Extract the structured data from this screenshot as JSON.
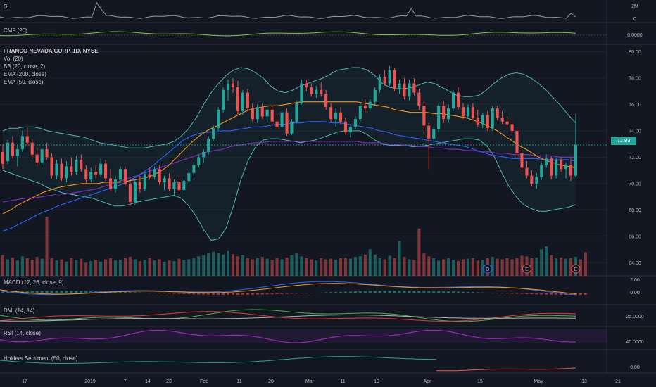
{
  "chart_data": {
    "type": "candlestick",
    "symbol_title": "FRANCO NEVADA CORP, 1D, NYSE",
    "last_price": "72.93",
    "price_axis": {
      "ticks": [
        "80.00",
        "78.00",
        "76.00",
        "74.00",
        "72.00",
        "70.00",
        "68.00",
        "66.00",
        "64.00"
      ],
      "ylim": [
        63,
        80.4
      ]
    },
    "x_axis": {
      "ticks": [
        "17",
        "2019",
        "7",
        "14",
        "23",
        "Feb",
        "11",
        "20",
        "Mar",
        "11",
        "19",
        "Apr",
        "15",
        "May",
        "13",
        "21"
      ]
    },
    "overlays": [
      "Vol (20)",
      "BB (20, close, 2)",
      "EMA (200, close)",
      "EMA (50, close)"
    ],
    "candles": [
      {
        "o": 72.4,
        "h": 73.0,
        "l": 71.1,
        "c": 71.5
      },
      {
        "o": 71.7,
        "h": 73.3,
        "l": 71.5,
        "c": 73.1
      },
      {
        "o": 73.1,
        "h": 73.6,
        "l": 71.9,
        "c": 72.1
      },
      {
        "o": 72.1,
        "h": 72.9,
        "l": 71.3,
        "c": 72.6
      },
      {
        "o": 72.6,
        "h": 74.0,
        "l": 72.4,
        "c": 73.6
      },
      {
        "o": 73.6,
        "h": 74.3,
        "l": 72.8,
        "c": 73.1
      },
      {
        "o": 73.1,
        "h": 73.4,
        "l": 71.9,
        "c": 72.2
      },
      {
        "o": 72.2,
        "h": 72.7,
        "l": 71.3,
        "c": 71.6
      },
      {
        "o": 71.6,
        "h": 72.9,
        "l": 71.4,
        "c": 72.6
      },
      {
        "o": 72.6,
        "h": 73.1,
        "l": 71.8,
        "c": 72.0
      },
      {
        "o": 72.0,
        "h": 72.3,
        "l": 70.4,
        "c": 70.6
      },
      {
        "o": 70.6,
        "h": 71.8,
        "l": 70.3,
        "c": 71.5
      },
      {
        "o": 71.5,
        "h": 71.9,
        "l": 70.2,
        "c": 70.4
      },
      {
        "o": 70.4,
        "h": 71.7,
        "l": 70.1,
        "c": 71.3
      },
      {
        "o": 71.3,
        "h": 72.0,
        "l": 70.6,
        "c": 70.9
      },
      {
        "o": 70.9,
        "h": 72.1,
        "l": 70.7,
        "c": 71.8
      },
      {
        "o": 71.8,
        "h": 72.2,
        "l": 70.9,
        "c": 71.1
      },
      {
        "o": 71.1,
        "h": 71.4,
        "l": 70.0,
        "c": 70.3
      },
      {
        "o": 70.3,
        "h": 71.2,
        "l": 70.1,
        "c": 70.9
      },
      {
        "o": 70.9,
        "h": 71.4,
        "l": 70.4,
        "c": 70.7
      },
      {
        "o": 70.7,
        "h": 71.9,
        "l": 70.5,
        "c": 71.5
      },
      {
        "o": 71.5,
        "h": 71.8,
        "l": 70.2,
        "c": 70.4
      },
      {
        "o": 70.4,
        "h": 71.1,
        "l": 69.4,
        "c": 69.6
      },
      {
        "o": 69.6,
        "h": 70.6,
        "l": 69.3,
        "c": 70.3
      },
      {
        "o": 70.3,
        "h": 71.3,
        "l": 70.1,
        "c": 71.1
      },
      {
        "o": 71.1,
        "h": 71.3,
        "l": 69.8,
        "c": 70.0
      },
      {
        "o": 70.0,
        "h": 70.4,
        "l": 68.3,
        "c": 68.6
      },
      {
        "o": 68.6,
        "h": 70.3,
        "l": 68.4,
        "c": 70.1
      },
      {
        "o": 70.1,
        "h": 70.6,
        "l": 69.3,
        "c": 69.6
      },
      {
        "o": 69.6,
        "h": 70.9,
        "l": 69.4,
        "c": 70.7
      },
      {
        "o": 70.7,
        "h": 71.2,
        "l": 70.3,
        "c": 70.5
      },
      {
        "o": 70.5,
        "h": 71.3,
        "l": 70.3,
        "c": 71.1
      },
      {
        "o": 71.1,
        "h": 71.4,
        "l": 69.9,
        "c": 70.1
      },
      {
        "o": 70.1,
        "h": 70.6,
        "l": 69.5,
        "c": 70.4
      },
      {
        "o": 70.4,
        "h": 70.8,
        "l": 69.4,
        "c": 69.6
      },
      {
        "o": 69.6,
        "h": 70.3,
        "l": 69.1,
        "c": 70.1
      },
      {
        "o": 70.1,
        "h": 70.6,
        "l": 69.3,
        "c": 69.5
      },
      {
        "o": 69.5,
        "h": 70.4,
        "l": 69.2,
        "c": 70.2
      },
      {
        "o": 70.2,
        "h": 71.0,
        "l": 70.0,
        "c": 70.8
      },
      {
        "o": 70.8,
        "h": 71.6,
        "l": 70.6,
        "c": 71.4
      },
      {
        "o": 71.4,
        "h": 72.2,
        "l": 71.2,
        "c": 72.0
      },
      {
        "o": 72.0,
        "h": 72.6,
        "l": 71.6,
        "c": 72.4
      },
      {
        "o": 72.4,
        "h": 73.6,
        "l": 72.2,
        "c": 73.4
      },
      {
        "o": 73.4,
        "h": 74.4,
        "l": 73.2,
        "c": 74.2
      },
      {
        "o": 74.2,
        "h": 75.8,
        "l": 74.0,
        "c": 75.6
      },
      {
        "o": 75.6,
        "h": 77.3,
        "l": 75.4,
        "c": 77.1
      },
      {
        "o": 77.1,
        "h": 77.9,
        "l": 76.3,
        "c": 77.6
      },
      {
        "o": 77.6,
        "h": 78.0,
        "l": 76.9,
        "c": 77.3
      },
      {
        "o": 77.3,
        "h": 77.8,
        "l": 75.2,
        "c": 75.5
      },
      {
        "o": 75.5,
        "h": 77.1,
        "l": 75.2,
        "c": 76.9
      },
      {
        "o": 76.9,
        "h": 77.2,
        "l": 75.5,
        "c": 75.7
      },
      {
        "o": 75.7,
        "h": 76.1,
        "l": 74.7,
        "c": 74.9
      },
      {
        "o": 74.9,
        "h": 76.0,
        "l": 74.6,
        "c": 75.8
      },
      {
        "o": 75.8,
        "h": 76.1,
        "l": 74.9,
        "c": 75.1
      },
      {
        "o": 75.1,
        "h": 75.9,
        "l": 74.6,
        "c": 75.6
      },
      {
        "o": 75.6,
        "h": 75.9,
        "l": 74.4,
        "c": 74.7
      },
      {
        "o": 74.7,
        "h": 75.3,
        "l": 74.1,
        "c": 74.3
      },
      {
        "o": 74.3,
        "h": 75.6,
        "l": 74.2,
        "c": 75.4
      },
      {
        "o": 75.4,
        "h": 75.7,
        "l": 73.6,
        "c": 73.8
      },
      {
        "o": 73.8,
        "h": 74.9,
        "l": 73.7,
        "c": 74.7
      },
      {
        "o": 74.7,
        "h": 76.3,
        "l": 74.6,
        "c": 76.1
      },
      {
        "o": 76.1,
        "h": 77.9,
        "l": 76.0,
        "c": 77.6
      },
      {
        "o": 77.6,
        "h": 77.9,
        "l": 77.0,
        "c": 77.3
      },
      {
        "o": 77.3,
        "h": 77.6,
        "l": 76.6,
        "c": 76.8
      },
      {
        "o": 76.8,
        "h": 77.4,
        "l": 76.5,
        "c": 77.1
      },
      {
        "o": 77.1,
        "h": 77.7,
        "l": 76.6,
        "c": 76.8
      },
      {
        "o": 76.8,
        "h": 77.1,
        "l": 75.6,
        "c": 75.8
      },
      {
        "o": 75.8,
        "h": 76.1,
        "l": 74.7,
        "c": 74.9
      },
      {
        "o": 74.9,
        "h": 75.7,
        "l": 74.3,
        "c": 75.4
      },
      {
        "o": 75.4,
        "h": 75.8,
        "l": 74.5,
        "c": 74.7
      },
      {
        "o": 74.7,
        "h": 75.0,
        "l": 73.7,
        "c": 73.9
      },
      {
        "o": 73.9,
        "h": 74.5,
        "l": 73.5,
        "c": 74.3
      },
      {
        "o": 74.3,
        "h": 75.1,
        "l": 74.1,
        "c": 74.9
      },
      {
        "o": 74.9,
        "h": 76.1,
        "l": 74.7,
        "c": 75.9
      },
      {
        "o": 75.9,
        "h": 76.4,
        "l": 75.4,
        "c": 75.7
      },
      {
        "o": 75.7,
        "h": 76.4,
        "l": 75.5,
        "c": 76.2
      },
      {
        "o": 76.2,
        "h": 77.3,
        "l": 76.0,
        "c": 77.1
      },
      {
        "o": 77.1,
        "h": 78.3,
        "l": 76.9,
        "c": 78.1
      },
      {
        "o": 78.1,
        "h": 78.6,
        "l": 77.4,
        "c": 77.6
      },
      {
        "o": 77.6,
        "h": 78.9,
        "l": 77.4,
        "c": 78.6
      },
      {
        "o": 78.6,
        "h": 78.8,
        "l": 77.0,
        "c": 77.2
      },
      {
        "o": 77.2,
        "h": 77.9,
        "l": 76.8,
        "c": 77.6
      },
      {
        "o": 77.6,
        "h": 78.0,
        "l": 76.4,
        "c": 76.6
      },
      {
        "o": 76.6,
        "h": 77.9,
        "l": 76.3,
        "c": 77.6
      },
      {
        "o": 77.6,
        "h": 78.0,
        "l": 76.7,
        "c": 76.9
      },
      {
        "o": 76.9,
        "h": 77.2,
        "l": 75.6,
        "c": 75.9
      },
      {
        "o": 75.9,
        "h": 76.2,
        "l": 73.8,
        "c": 74.4
      },
      {
        "o": 74.4,
        "h": 74.6,
        "l": 71.1,
        "c": 73.4
      },
      {
        "o": 73.4,
        "h": 74.3,
        "l": 73.1,
        "c": 74.1
      },
      {
        "o": 74.1,
        "h": 76.1,
        "l": 73.9,
        "c": 75.9
      },
      {
        "o": 75.9,
        "h": 76.3,
        "l": 74.6,
        "c": 74.9
      },
      {
        "o": 74.9,
        "h": 76.0,
        "l": 74.6,
        "c": 75.7
      },
      {
        "o": 75.7,
        "h": 77.1,
        "l": 75.5,
        "c": 76.9
      },
      {
        "o": 76.9,
        "h": 77.3,
        "l": 75.6,
        "c": 75.8
      },
      {
        "o": 75.8,
        "h": 76.1,
        "l": 74.9,
        "c": 75.1
      },
      {
        "o": 75.1,
        "h": 76.0,
        "l": 74.9,
        "c": 75.8
      },
      {
        "o": 75.8,
        "h": 76.1,
        "l": 74.8,
        "c": 75.0
      },
      {
        "o": 75.0,
        "h": 75.6,
        "l": 74.3,
        "c": 74.5
      },
      {
        "o": 74.5,
        "h": 75.4,
        "l": 74.2,
        "c": 75.2
      },
      {
        "o": 75.2,
        "h": 75.5,
        "l": 74.0,
        "c": 74.2
      },
      {
        "o": 74.2,
        "h": 75.9,
        "l": 74.0,
        "c": 75.7
      },
      {
        "o": 75.7,
        "h": 75.9,
        "l": 74.8,
        "c": 75.0
      },
      {
        "o": 75.0,
        "h": 75.5,
        "l": 74.5,
        "c": 74.7
      },
      {
        "o": 74.7,
        "h": 75.1,
        "l": 74.2,
        "c": 74.5
      },
      {
        "o": 74.5,
        "h": 74.9,
        "l": 73.8,
        "c": 74.0
      },
      {
        "o": 74.0,
        "h": 74.3,
        "l": 72.1,
        "c": 72.3
      },
      {
        "o": 72.3,
        "h": 72.6,
        "l": 70.9,
        "c": 71.2
      },
      {
        "o": 71.2,
        "h": 71.7,
        "l": 70.4,
        "c": 70.6
      },
      {
        "o": 70.6,
        "h": 71.0,
        "l": 69.8,
        "c": 70.0
      },
      {
        "o": 70.0,
        "h": 70.8,
        "l": 69.6,
        "c": 70.5
      },
      {
        "o": 70.5,
        "h": 71.6,
        "l": 70.3,
        "c": 71.4
      },
      {
        "o": 71.4,
        "h": 72.2,
        "l": 71.2,
        "c": 71.9
      },
      {
        "o": 71.9,
        "h": 72.1,
        "l": 70.3,
        "c": 70.6
      },
      {
        "o": 70.6,
        "h": 72.0,
        "l": 70.4,
        "c": 71.8
      },
      {
        "o": 71.8,
        "h": 72.0,
        "l": 70.9,
        "c": 71.1
      },
      {
        "o": 71.1,
        "h": 71.6,
        "l": 70.4,
        "c": 71.4
      },
      {
        "o": 71.4,
        "h": 71.9,
        "l": 70.2,
        "c": 70.6
      },
      {
        "o": 70.6,
        "h": 75.3,
        "l": 70.5,
        "c": 72.93
      }
    ],
    "bb_upper": [
      74.0,
      74.2,
      74.2,
      74.3,
      74.3,
      74.2,
      74.0,
      73.9,
      73.8,
      73.7,
      73.6,
      73.5,
      73.3,
      73.1,
      73.0,
      72.9,
      72.8,
      72.7,
      72.7,
      72.7,
      72.8,
      72.9,
      73.0,
      73.2,
      73.6,
      74.2,
      75.0,
      76.0,
      76.9,
      77.6,
      78.2,
      78.6,
      78.8,
      78.7,
      78.4,
      78.0,
      77.4,
      77.0,
      76.9,
      77.1,
      77.4,
      77.6,
      77.8,
      78.0,
      78.3,
      78.6,
      78.7,
      78.8,
      78.8,
      78.6,
      78.2,
      77.6,
      77.3,
      77.2,
      77.2,
      77.3,
      77.5,
      77.7,
      77.6,
      77.3,
      77.0,
      76.7,
      76.6,
      76.6,
      76.7,
      77.1,
      77.6,
      78.0,
      78.3,
      78.4,
      78.3,
      78.0,
      77.6,
      77.1,
      76.5,
      75.9,
      75.2,
      74.6
    ],
    "bb_lower": [
      71.0,
      70.8,
      70.6,
      70.4,
      70.2,
      70.0,
      69.7,
      69.5,
      69.3,
      69.2,
      69.1,
      69.0,
      68.9,
      68.7,
      68.5,
      68.3,
      68.3,
      68.4,
      68.6,
      68.7,
      68.8,
      68.9,
      69.0,
      69.1,
      68.9,
      68.3,
      67.5,
      66.5,
      65.7,
      65.8,
      66.6,
      68.3,
      70.3,
      71.8,
      72.8,
      73.3,
      73.4,
      73.4,
      73.3,
      73.2,
      73.1,
      73.2,
      73.3,
      73.5,
      73.7,
      73.9,
      74.0,
      74.0,
      74.0,
      73.7,
      73.3,
      73.0,
      72.9,
      72.9,
      72.9,
      72.8,
      72.8,
      72.9,
      73.0,
      73.1,
      73.2,
      73.3,
      73.4,
      73.4,
      73.3,
      72.9,
      72.1,
      70.9,
      69.8,
      69.0,
      68.4,
      68.1,
      67.9,
      67.9,
      68.0,
      68.1,
      68.2,
      68.4
    ],
    "ema50": [
      67.7,
      68.0,
      68.4,
      68.7,
      69.0,
      69.3,
      69.5,
      69.7,
      69.8,
      69.9,
      70.0,
      70.0,
      70.0,
      70.1,
      70.1,
      70.1,
      70.2,
      70.3,
      70.4,
      70.6,
      70.9,
      71.3,
      71.9,
      72.5,
      73.1,
      73.6,
      74.0,
      74.3,
      74.6,
      74.9,
      75.2,
      75.5,
      75.7,
      75.8,
      75.9,
      75.9,
      76.0,
      76.1,
      76.2,
      76.2,
      76.2,
      76.2,
      76.2,
      76.2,
      76.2,
      76.2,
      76.1,
      76.0,
      75.9,
      75.8,
      75.6,
      75.5,
      75.4,
      75.4,
      75.4,
      75.3,
      75.3,
      75.2,
      75.1,
      75.0,
      74.8,
      74.6,
      74.3,
      74.0,
      73.6,
      73.2,
      72.8,
      72.5,
      72.1,
      71.8,
      71.6,
      71.4,
      71.3,
      71.2
    ],
    "ema200": [
      66.4,
      66.6,
      66.9,
      67.2,
      67.5,
      67.8,
      68.0,
      68.3,
      68.5,
      68.7,
      68.9,
      69.1,
      69.3,
      69.5,
      69.7,
      69.9,
      70.2,
      70.5,
      70.9,
      71.3,
      71.8,
      72.3,
      72.8,
      73.3,
      73.6,
      73.8,
      73.9,
      73.9,
      74.0,
      74.0,
      74.1,
      74.2,
      74.3,
      74.3,
      74.4,
      74.5,
      74.5,
      74.6,
      74.6,
      74.7,
      74.7,
      74.7,
      74.6,
      74.6,
      74.5,
      74.4,
      74.3,
      74.2,
      74.0,
      73.9,
      73.7,
      73.6,
      73.5,
      73.4,
      73.3,
      73.2,
      73.1,
      73.0,
      72.9,
      72.8,
      72.6,
      72.4,
      72.2,
      72.1,
      72.0,
      71.9,
      71.9,
      71.9,
      71.9,
      71.8,
      71.8,
      71.8,
      71.8,
      71.7
    ],
    "ema_purple": [
      68.6,
      68.7,
      68.8,
      68.9,
      68.9,
      69.0,
      69.1,
      69.2,
      69.2,
      69.3,
      69.4,
      69.5,
      69.6,
      69.8,
      70.0,
      70.2,
      70.4,
      70.6,
      70.8,
      71.0,
      71.2,
      71.4,
      71.6,
      71.8,
      72.0,
      72.2,
      72.4,
      72.5,
      72.6,
      72.8,
      72.9,
      73.0,
      73.1,
      73.1,
      73.2,
      73.2,
      73.2,
      73.2,
      73.2,
      73.2,
      73.2,
      73.2,
      73.2,
      73.2,
      73.2,
      73.2,
      73.1,
      73.1,
      73.1,
      73.0,
      73.0,
      72.9,
      72.9,
      72.8,
      72.8,
      72.7,
      72.7,
      72.6,
      72.6,
      72.5,
      72.5,
      72.4,
      72.4,
      72.3,
      72.3,
      72.2,
      72.2,
      72.2,
      72.1,
      72.1,
      72.1,
      72.0,
      72.0,
      72.0
    ],
    "volume": [
      0.35,
      0.28,
      0.31,
      0.26,
      0.33,
      0.3,
      0.27,
      0.32,
      0.29,
      1.0,
      0.3,
      0.26,
      0.28,
      0.24,
      0.3,
      0.27,
      0.29,
      0.22,
      0.25,
      0.27,
      0.24,
      0.28,
      0.3,
      0.26,
      0.27,
      0.3,
      0.32,
      0.28,
      0.25,
      0.27,
      0.3,
      0.26,
      0.28,
      0.24,
      0.26,
      0.25,
      0.29,
      0.27,
      0.28,
      0.3,
      0.33,
      0.35,
      0.38,
      0.41,
      0.39,
      0.36,
      0.42,
      0.37,
      0.33,
      0.35,
      0.3,
      0.28,
      0.3,
      0.32,
      0.29,
      0.27,
      0.3,
      0.28,
      0.31,
      0.35,
      0.38,
      0.33,
      0.3,
      0.28,
      0.26,
      0.3,
      0.28,
      0.29,
      0.27,
      0.3,
      0.31,
      0.29,
      0.32,
      0.33,
      0.36,
      0.45,
      0.36,
      0.3,
      0.28,
      0.34,
      0.3,
      0.59,
      0.32,
      0.28,
      0.27,
      0.8,
      0.38,
      0.33,
      0.3,
      0.26,
      0.28,
      0.3,
      0.27,
      0.25,
      0.28,
      0.29,
      0.3,
      0.26,
      0.27,
      0.3,
      0.32,
      0.29,
      0.28,
      0.3,
      0.28,
      0.3,
      0.34,
      0.33,
      0.3,
      0.31,
      0.45,
      0.5,
      0.35,
      0.3,
      0.31,
      0.29,
      0.3,
      0.32,
      0.28,
      0.4
    ],
    "volume_markers": [
      "D",
      "E",
      "E"
    ],
    "panes": {
      "si": {
        "label": "SI",
        "ticks": [
          "2M",
          "0"
        ]
      },
      "cmf": {
        "label": "CMF (20)",
        "ticks": [
          "0.0000"
        ]
      },
      "macd": {
        "label": "MACD (12, 26, close, 9)",
        "ticks": [
          "2.00",
          "0.00"
        ]
      },
      "dmi": {
        "label": "DMI (14, 14)",
        "ticks": [
          "25.0000"
        ]
      },
      "rsi": {
        "label": "RSI (14, close)",
        "ticks": [
          "40.0000"
        ]
      },
      "holders": {
        "label": "Holders Sentiment (50, close)",
        "ticks": [
          "0.00"
        ]
      }
    },
    "colors": {
      "up": "#26a69a",
      "down": "#ef5350",
      "bb": "#4db6ac",
      "ema50": "#f7931a",
      "ema200": "#2962ff",
      "ema_purple": "#7b2cbf",
      "rsi": "#9c27b0",
      "dmi_plus": "#4caf50",
      "dmi_minus": "#e53935",
      "adx": "#b0b0b0",
      "macd_line": "#2962ff",
      "signal_line": "#ff9800"
    }
  }
}
